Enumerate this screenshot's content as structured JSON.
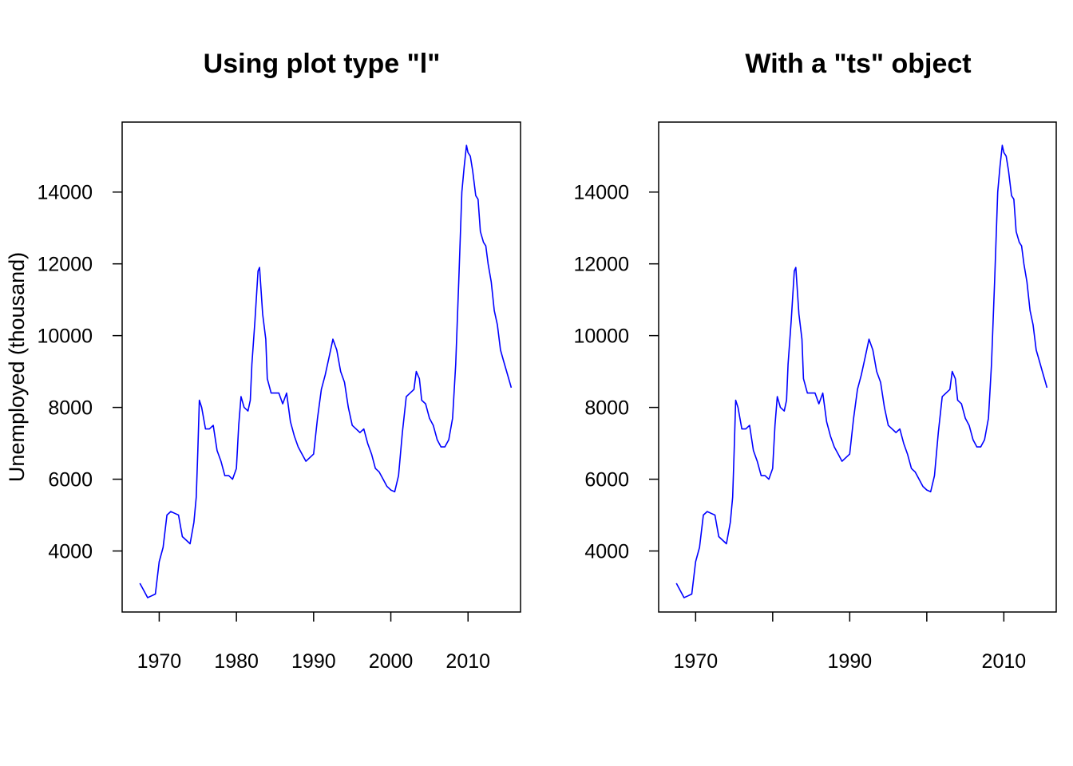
{
  "colors": {
    "series": "#0000ff",
    "axis": "#000000",
    "background": "#ffffff"
  },
  "chart_data": [
    {
      "type": "line",
      "title": "Using plot type \"l\"",
      "xlabel": "",
      "ylabel": "Unemployed (thousand)",
      "xlim": [
        1965.2,
        2016.8
      ],
      "ylim": [
        2300,
        15950
      ],
      "x_ticks": [
        1970,
        1980,
        1990,
        2000,
        2010
      ],
      "x_tick_labels": [
        "1970",
        "1980",
        "1990",
        "2000",
        "2010"
      ],
      "y_ticks": [
        4000,
        6000,
        8000,
        10000,
        12000,
        14000
      ],
      "y_tick_labels": [
        "4000",
        "6000",
        "8000",
        "10000",
        "12000",
        "14000"
      ],
      "grid": false,
      "series": [
        {
          "x": [
            1967.5,
            1968.0,
            1968.5,
            1969.0,
            1969.5,
            1970.0,
            1970.5,
            1971.0,
            1971.5,
            1972.0,
            1972.5,
            1973.0,
            1973.5,
            1974.0,
            1974.5,
            1974.8,
            1975.0,
            1975.2,
            1975.5,
            1976.0,
            1976.5,
            1977.0,
            1977.5,
            1978.0,
            1978.5,
            1979.0,
            1979.5,
            1980.0,
            1980.3,
            1980.6,
            1981.0,
            1981.5,
            1981.8,
            1982.0,
            1982.4,
            1982.8,
            1983.0,
            1983.4,
            1983.8,
            1984.0,
            1984.5,
            1985.0,
            1985.5,
            1986.0,
            1986.5,
            1987.0,
            1987.5,
            1988.0,
            1988.5,
            1989.0,
            1989.5,
            1990.0,
            1990.5,
            1991.0,
            1991.5,
            1992.0,
            1992.5,
            1993.0,
            1993.5,
            1994.0,
            1994.5,
            1995.0,
            1995.5,
            1996.0,
            1996.5,
            1997.0,
            1997.5,
            1998.0,
            1998.5,
            1999.0,
            1999.5,
            2000.0,
            2000.5,
            2001.0,
            2001.5,
            2002.0,
            2002.5,
            2003.0,
            2003.3,
            2003.7,
            2004.0,
            2004.5,
            2005.0,
            2005.5,
            2006.0,
            2006.5,
            2007.0,
            2007.5,
            2008.0,
            2008.4,
            2008.8,
            2009.2,
            2009.5,
            2009.8,
            2010.0,
            2010.3,
            2010.6,
            2011.0,
            2011.3,
            2011.6,
            2012.0,
            2012.3,
            2012.6,
            2013.0,
            2013.4,
            2013.8,
            2014.2,
            2014.6,
            2015.0,
            2015.4,
            2015.6
          ],
          "y": [
            3100,
            2900,
            2700,
            2750,
            2800,
            3700,
            4100,
            5000,
            5100,
            5050,
            5000,
            4400,
            4300,
            4200,
            4800,
            5500,
            6800,
            8200,
            8000,
            7400,
            7400,
            7500,
            6800,
            6500,
            6100,
            6100,
            6000,
            6300,
            7500,
            8300,
            8000,
            7900,
            8200,
            9200,
            10400,
            11800,
            11900,
            10600,
            9900,
            8800,
            8400,
            8400,
            8400,
            8100,
            8400,
            7600,
            7200,
            6900,
            6700,
            6500,
            6600,
            6700,
            7700,
            8500,
            8900,
            9400,
            9900,
            9600,
            9000,
            8700,
            8000,
            7500,
            7400,
            7300,
            7400,
            7000,
            6700,
            6300,
            6200,
            6000,
            5800,
            5700,
            5650,
            6100,
            7300,
            8300,
            8400,
            8500,
            9000,
            8800,
            8200,
            8100,
            7700,
            7500,
            7100,
            6900,
            6900,
            7100,
            7700,
            9200,
            11500,
            14000,
            14700,
            15300,
            15100,
            15000,
            14600,
            13900,
            13800,
            12900,
            12600,
            12500,
            12000,
            11500,
            10700,
            10300,
            9600,
            9300,
            9000,
            8700,
            8550
          ]
        }
      ]
    },
    {
      "type": "line",
      "title": "With a \"ts\" object",
      "xlabel": "",
      "ylabel": "",
      "xlim": [
        1965.2,
        2016.8
      ],
      "ylim": [
        2300,
        15950
      ],
      "x_ticks": [
        1970,
        1980,
        1990,
        2000,
        2010
      ],
      "x_tick_labels": [
        "1970",
        "",
        "1990",
        "",
        "2010"
      ],
      "y_ticks": [
        4000,
        6000,
        8000,
        10000,
        12000,
        14000
      ],
      "y_tick_labels": [
        "4000",
        "6000",
        "8000",
        "10000",
        "12000",
        "14000"
      ],
      "grid": false,
      "series": [
        {
          "x": [
            1967.5,
            1968.0,
            1968.5,
            1969.0,
            1969.5,
            1970.0,
            1970.5,
            1971.0,
            1971.5,
            1972.0,
            1972.5,
            1973.0,
            1973.5,
            1974.0,
            1974.5,
            1974.8,
            1975.0,
            1975.2,
            1975.5,
            1976.0,
            1976.5,
            1977.0,
            1977.5,
            1978.0,
            1978.5,
            1979.0,
            1979.5,
            1980.0,
            1980.3,
            1980.6,
            1981.0,
            1981.5,
            1981.8,
            1982.0,
            1982.4,
            1982.8,
            1983.0,
            1983.4,
            1983.8,
            1984.0,
            1984.5,
            1985.0,
            1985.5,
            1986.0,
            1986.5,
            1987.0,
            1987.5,
            1988.0,
            1988.5,
            1989.0,
            1989.5,
            1990.0,
            1990.5,
            1991.0,
            1991.5,
            1992.0,
            1992.5,
            1993.0,
            1993.5,
            1994.0,
            1994.5,
            1995.0,
            1995.5,
            1996.0,
            1996.5,
            1997.0,
            1997.5,
            1998.0,
            1998.5,
            1999.0,
            1999.5,
            2000.0,
            2000.5,
            2001.0,
            2001.5,
            2002.0,
            2002.5,
            2003.0,
            2003.3,
            2003.7,
            2004.0,
            2004.5,
            2005.0,
            2005.5,
            2006.0,
            2006.5,
            2007.0,
            2007.5,
            2008.0,
            2008.4,
            2008.8,
            2009.2,
            2009.5,
            2009.8,
            2010.0,
            2010.3,
            2010.6,
            2011.0,
            2011.3,
            2011.6,
            2012.0,
            2012.3,
            2012.6,
            2013.0,
            2013.4,
            2013.8,
            2014.2,
            2014.6,
            2015.0,
            2015.4,
            2015.6
          ],
          "y": [
            3100,
            2900,
            2700,
            2750,
            2800,
            3700,
            4100,
            5000,
            5100,
            5050,
            5000,
            4400,
            4300,
            4200,
            4800,
            5500,
            6800,
            8200,
            8000,
            7400,
            7400,
            7500,
            6800,
            6500,
            6100,
            6100,
            6000,
            6300,
            7500,
            8300,
            8000,
            7900,
            8200,
            9200,
            10400,
            11800,
            11900,
            10600,
            9900,
            8800,
            8400,
            8400,
            8400,
            8100,
            8400,
            7600,
            7200,
            6900,
            6700,
            6500,
            6600,
            6700,
            7700,
            8500,
            8900,
            9400,
            9900,
            9600,
            9000,
            8700,
            8000,
            7500,
            7400,
            7300,
            7400,
            7000,
            6700,
            6300,
            6200,
            6000,
            5800,
            5700,
            5650,
            6100,
            7300,
            8300,
            8400,
            8500,
            9000,
            8800,
            8200,
            8100,
            7700,
            7500,
            7100,
            6900,
            6900,
            7100,
            7700,
            9200,
            11500,
            14000,
            14700,
            15300,
            15100,
            15000,
            14600,
            13900,
            13800,
            12900,
            12600,
            12500,
            12000,
            11500,
            10700,
            10300,
            9600,
            9300,
            9000,
            8700,
            8550
          ]
        }
      ]
    }
  ]
}
